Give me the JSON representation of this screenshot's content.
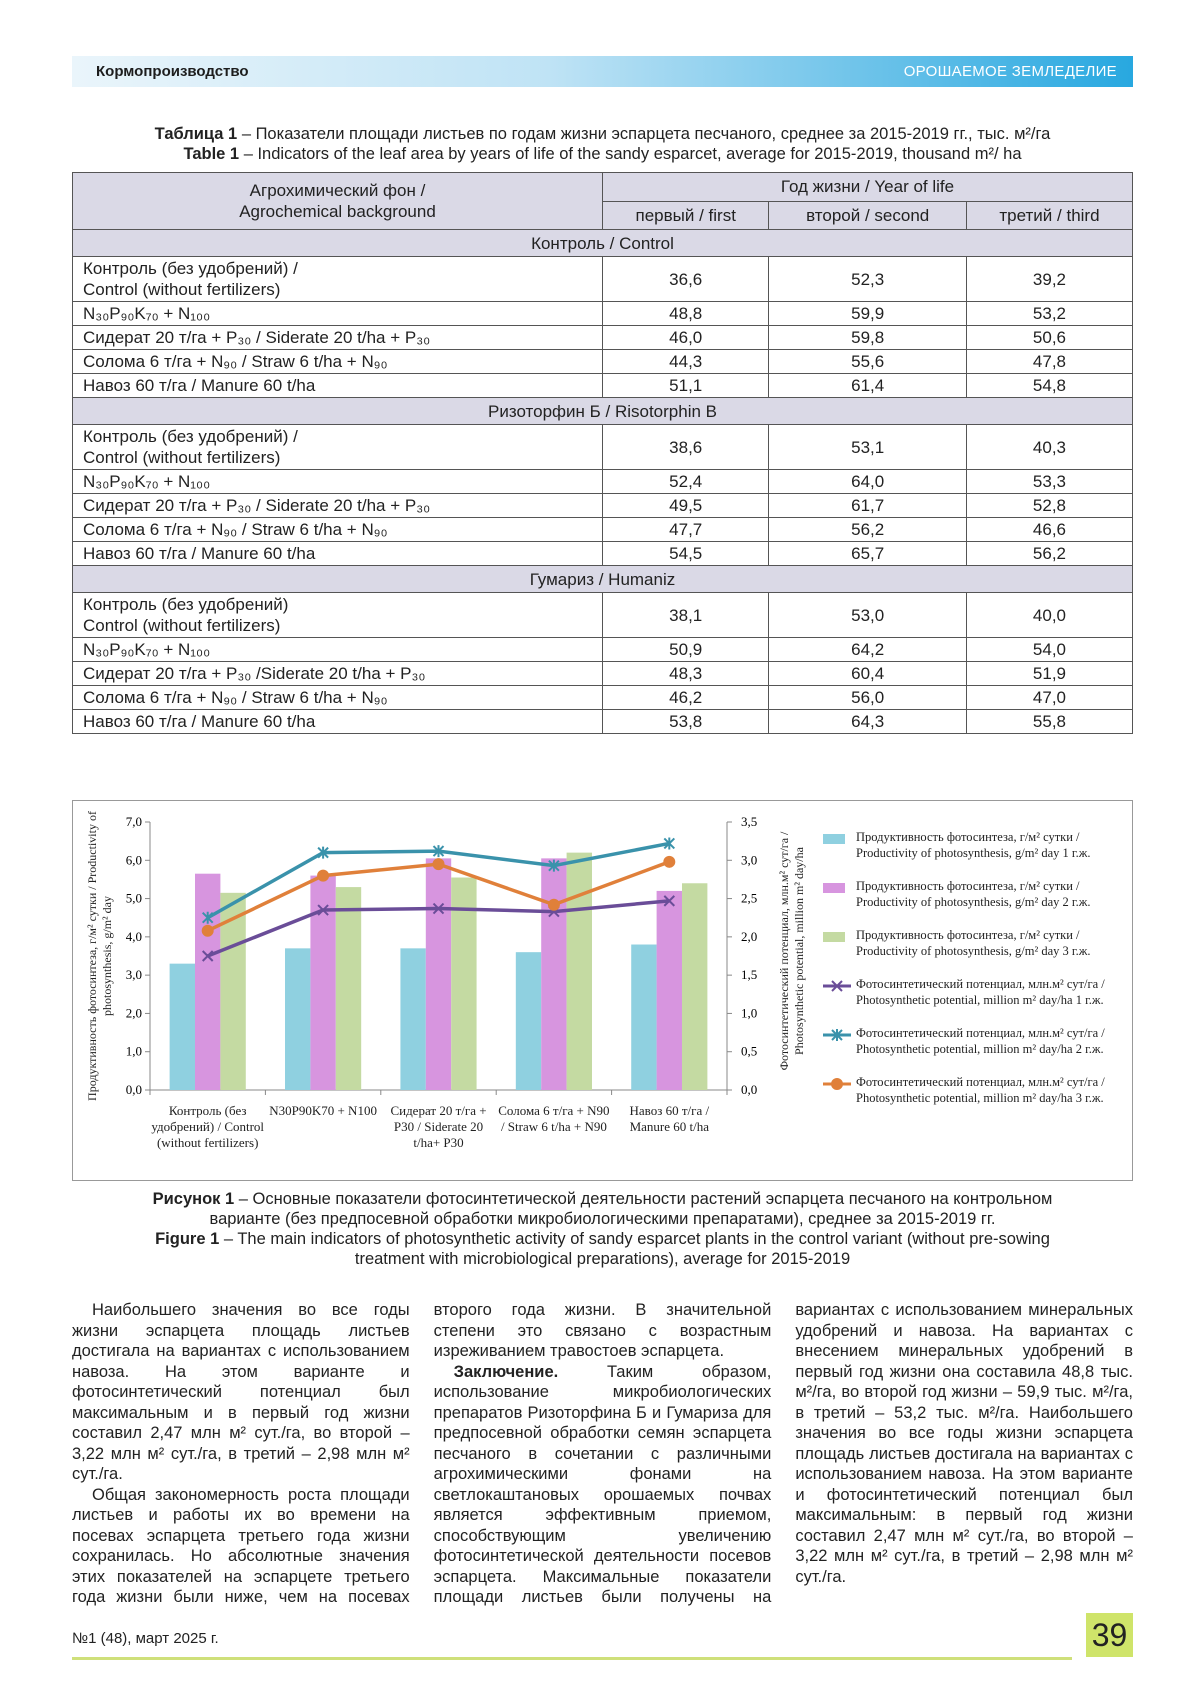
{
  "header": {
    "section": "Кормопроизводство",
    "rubric": "ОРОШАЕМОЕ ЗЕМЛЕДЕЛИЕ"
  },
  "table": {
    "caption_ru": {
      "label": "Таблица 1",
      "text": "– Показатели площади листьев по годам жизни эспарцета песчаного, среднее за 2015-2019 гг., тыс. м²/га"
    },
    "caption_en": {
      "label": "Table 1",
      "text": "– Indicators of the leaf area by years of life of the sandy esparcet, average for 2015-2019, thousand m²/ ha"
    },
    "header": {
      "background": [
        "Агрохимический фон /",
        "Agrochemical background"
      ],
      "year": "Год жизни / Year of life",
      "years": [
        "первый / first",
        "второй / second",
        "третий / third"
      ]
    },
    "groups": [
      {
        "title": "Контроль / Control",
        "rows": [
          [
            [
              "Контроль (без удобрений) /",
              "Control (without fertilizers)"
            ],
            "36,6",
            "52,3",
            "39,2"
          ],
          [
            "N₃₀P₉₀K₇₀ + N₁₀₀",
            "48,8",
            "59,9",
            "53,2"
          ],
          [
            "Сидерат 20 т/га + P₃₀ / Siderate 20 t/ha + P₃₀",
            "46,0",
            "59,8",
            "50,6"
          ],
          [
            "Солома 6 т/га + N₉₀ / Straw 6 t/ha + N₉₀",
            "44,3",
            "55,6",
            "47,8"
          ],
          [
            "Навоз 60 т/га / Manure 60 t/ha",
            "51,1",
            "61,4",
            "54,8"
          ]
        ]
      },
      {
        "title": "Ризоторфин Б / Risotorphin B",
        "rows": [
          [
            [
              "Контроль (без удобрений) /",
              "Control (without fertilizers)"
            ],
            "38,6",
            "53,1",
            "40,3"
          ],
          [
            "N₃₀P₉₀K₇₀ + N₁₀₀",
            "52,4",
            "64,0",
            "53,3"
          ],
          [
            "Сидерат 20 т/га + P₃₀ / Siderate 20 t/ha + P₃₀",
            "49,5",
            "61,7",
            "52,8"
          ],
          [
            "Солома 6 т/га + N₉₀ / Straw 6 t/ha + N₉₀",
            "47,7",
            "56,2",
            "46,6"
          ],
          [
            "Навоз 60 т/га / Manure 60 t/ha",
            "54,5",
            "65,7",
            "56,2"
          ]
        ]
      },
      {
        "title": "Гумариз / Humaniz",
        "rows": [
          [
            [
              "Контроль (без удобрений)",
              "Control (without fertilizers)"
            ],
            "38,1",
            "53,0",
            "40,0"
          ],
          [
            "N₃₀P₉₀K₇₀ + N₁₀₀",
            "50,9",
            "64,2",
            "54,0"
          ],
          [
            "Сидерат 20 т/га + P₃₀ /Siderate 20 t/ha + P₃₀",
            "48,3",
            "60,4",
            "51,9"
          ],
          [
            "Солома 6 т/га + N₉₀ / Straw 6 t/ha + N₉₀",
            "46,2",
            "56,0",
            "47,0"
          ],
          [
            "Навоз 60 т/га / Manure 60 t/ha",
            "53,8",
            "64,3",
            "55,8"
          ]
        ]
      }
    ]
  },
  "chart_data": {
    "type": "bar",
    "categories": [
      "Контроль (без удобрений) / Control (without fertilizers)",
      "N30P90K70 + N100",
      "Сидерат 20 т/га + P30 / Siderate 20 t/ha+ P30",
      "Солома 6 т/га + N90 / Straw 6 t/ha + N90",
      "Навоз 60 т/га / Manure 60 t/ha"
    ],
    "ylabel": "Продуктивность фотосинтеза, г/м² сутки / Productivity of photosynthesis, g/m² day",
    "y2label": "Фотосинтетический потенциал, млн.м² сут/га / Photosynthetic potential, million m² day/ha",
    "ylim": [
      0,
      7
    ],
    "yticks": [
      {
        "value": 0,
        "label": "0,0"
      },
      {
        "value": 1,
        "label": "1,0"
      },
      {
        "value": 2,
        "label": "2,0"
      },
      {
        "value": 3,
        "label": "3,0"
      },
      {
        "value": 4,
        "label": "4,0"
      },
      {
        "value": 5,
        "label": "5,0"
      },
      {
        "value": 6,
        "label": "6,0"
      },
      {
        "value": 7,
        "label": "7,0"
      }
    ],
    "y2lim": [
      0,
      3.5
    ],
    "y2ticks": [
      {
        "value": 0,
        "label": "0,0"
      },
      {
        "value": 0.5,
        "label": "0,5"
      },
      {
        "value": 1,
        "label": "1,0"
      },
      {
        "value": 1.5,
        "label": "1,5"
      },
      {
        "value": 2,
        "label": "2,0"
      },
      {
        "value": 2.5,
        "label": "2,5"
      },
      {
        "value": 3,
        "label": "3,0"
      },
      {
        "value": 3.5,
        "label": "3,5"
      }
    ],
    "series": [
      {
        "name": "Продуктивность фотосинтеза, г/м² сутки / Productivity of photosynthesis, g/m² day 1 г.ж.",
        "type": "bar",
        "color": "#8fd0e0",
        "values": [
          3.3,
          3.7,
          3.7,
          3.6,
          3.8
        ]
      },
      {
        "name": "Продуктивность фотосинтеза, г/м² сутки / Productivity of photosynthesis, g/m² day 2 г.ж.",
        "type": "bar",
        "color": "#d795df",
        "values": [
          5.65,
          5.6,
          6.05,
          6.05,
          5.2
        ]
      },
      {
        "name": "Продуктивность фотосинтеза, г/м² сутки / Productivity of photosynthesis, g/m² day 3 г.ж.",
        "type": "bar",
        "color": "#c4daa2",
        "values": [
          5.15,
          5.3,
          5.55,
          6.2,
          5.4
        ]
      },
      {
        "name": "Фотосинтетический потенциал, млн.м² сут/га / Photosynthetic potential, million m² day/ha 1 г.ж.",
        "type": "line",
        "axis": "y2",
        "marker": "x",
        "color": "#6a4d98",
        "values": [
          1.75,
          2.35,
          2.37,
          2.33,
          2.47
        ]
      },
      {
        "name": "Фотосинтетический потенциал, млн.м² сут/га / Photosynthetic potential, million m² day/ha 2 г.ж.",
        "type": "line",
        "axis": "y2",
        "marker": "star",
        "color": "#3a92ab",
        "values": [
          2.25,
          3.1,
          3.12,
          2.93,
          3.22
        ]
      },
      {
        "name": "Фотосинтетический потенциал, млн.м² сут/га / Photosynthetic potential, million m² day/ha 3 г.ж.",
        "type": "line",
        "axis": "y2",
        "marker": "circle",
        "color": "#e0803a",
        "values": [
          2.08,
          2.8,
          2.95,
          2.42,
          2.98
        ]
      }
    ],
    "legend": "right"
  },
  "figure_caption": {
    "ru": {
      "label": "Рисунок 1",
      "text": "– Основные показатели фотосинтетической деятельности растений эспарцета песчаного на контрольном варианте (без предпосевной обработки микробиологическими препаратами), среднее за 2015-2019 гг."
    },
    "en": {
      "label": "Figure 1",
      "text": "– The main indicators of photosynthetic activity of sandy esparcet plants in the control variant (without pre-sowing treatment with microbiological preparations), average for 2015-2019"
    }
  },
  "body": {
    "paragraphs": [
      {
        "text": "Наибольшего значения во все годы жизни эспарцета площадь листьев достигала на вариантах с использованием навоза. На этом варианте и фотосинтетический потенциал был максимальным и в первый год жизни составил 2,47 млн м² сут./га, во второй – 3,22 млн м² сут./га, в третий – 2,98 млн м² сут./га."
      },
      {
        "text": "Общая закономерность роста площади листьев и работы их во времени на посевах эспарцета третьего года жизни сохранилась. Но абсолютные значения этих показателей на эспарцете третьего года жизни были ниже, чем на посевах второго года жизни. В значительной степени это связано с возрастным изреживанием травостоев эспарцета."
      },
      {
        "lead": "Заключение.",
        "text": "Таким образом, использование микробиологических препаратов Ризоторфина Б и Гумариза для предпосевной обработки семян эспарцета песчаного в сочетании с различными агрохимическими фонами на светлокаштановых орошаемых почвах является эффективным приемом, способствующим увеличению фотосинтетической деятельности посевов эспарцета. Максимальные показатели площади листьев были получены на вариантах с использованием минеральных удобрений и навоза. На вариантах с внесением минеральных удобрений в первый год жизни она составила 48,8 тыс. м²/га, во второй год жизни – 59,9 тыс. м²/га, в третий – 53,2 тыс. м²/га. Наибольшего значения во все годы жизни эспарцета площадь листьев достигала на вариантах с использованием навоза. На этом варианте и фотосинтетический потенциал был максимальным: в первый год жизни составил 2,47 млн м² сут./га, во второй – 3,22 млн м² сут./га, в третий – 2,98 млн м² сут./га."
      }
    ]
  },
  "footer": {
    "issue": "№1 (48), март 2025 г.",
    "page": "39"
  }
}
